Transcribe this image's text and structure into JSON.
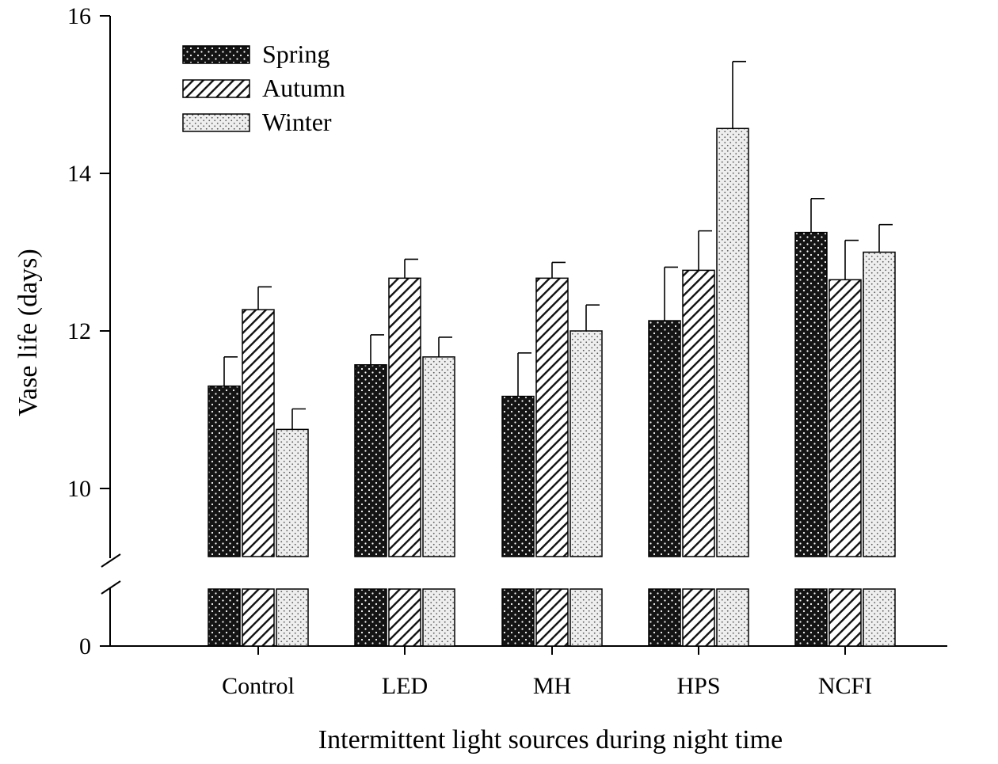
{
  "chart_data": {
    "type": "bar",
    "title": "",
    "xlabel": "Intermittent light sources during night time",
    "ylabel": "Vase life (days)",
    "categories": [
      "Control",
      "LED",
      "MH",
      "HPS",
      "NCFI"
    ],
    "series": [
      {
        "name": "Spring",
        "values": [
          11.3,
          11.57,
          11.17,
          12.13,
          13.25
        ],
        "errors": [
          0.37,
          0.38,
          0.55,
          0.68,
          0.43
        ],
        "pattern": "dots-dark"
      },
      {
        "name": "Autumn",
        "values": [
          12.27,
          12.67,
          12.67,
          12.77,
          12.65
        ],
        "errors": [
          0.29,
          0.24,
          0.2,
          0.5,
          0.5
        ],
        "pattern": "hatch"
      },
      {
        "name": "Winter",
        "values": [
          10.75,
          11.67,
          12.0,
          14.57,
          13.0
        ],
        "errors": [
          0.26,
          0.25,
          0.33,
          0.85,
          0.35
        ],
        "pattern": "dots-light"
      }
    ],
    "y_axis": {
      "ticks": [
        "0",
        "10",
        "12",
        "14",
        "16"
      ],
      "broken": true,
      "lower_range": [
        0,
        0
      ],
      "upper_range": [
        10,
        16
      ]
    },
    "legend_placement": "top-left",
    "grid": false
  }
}
